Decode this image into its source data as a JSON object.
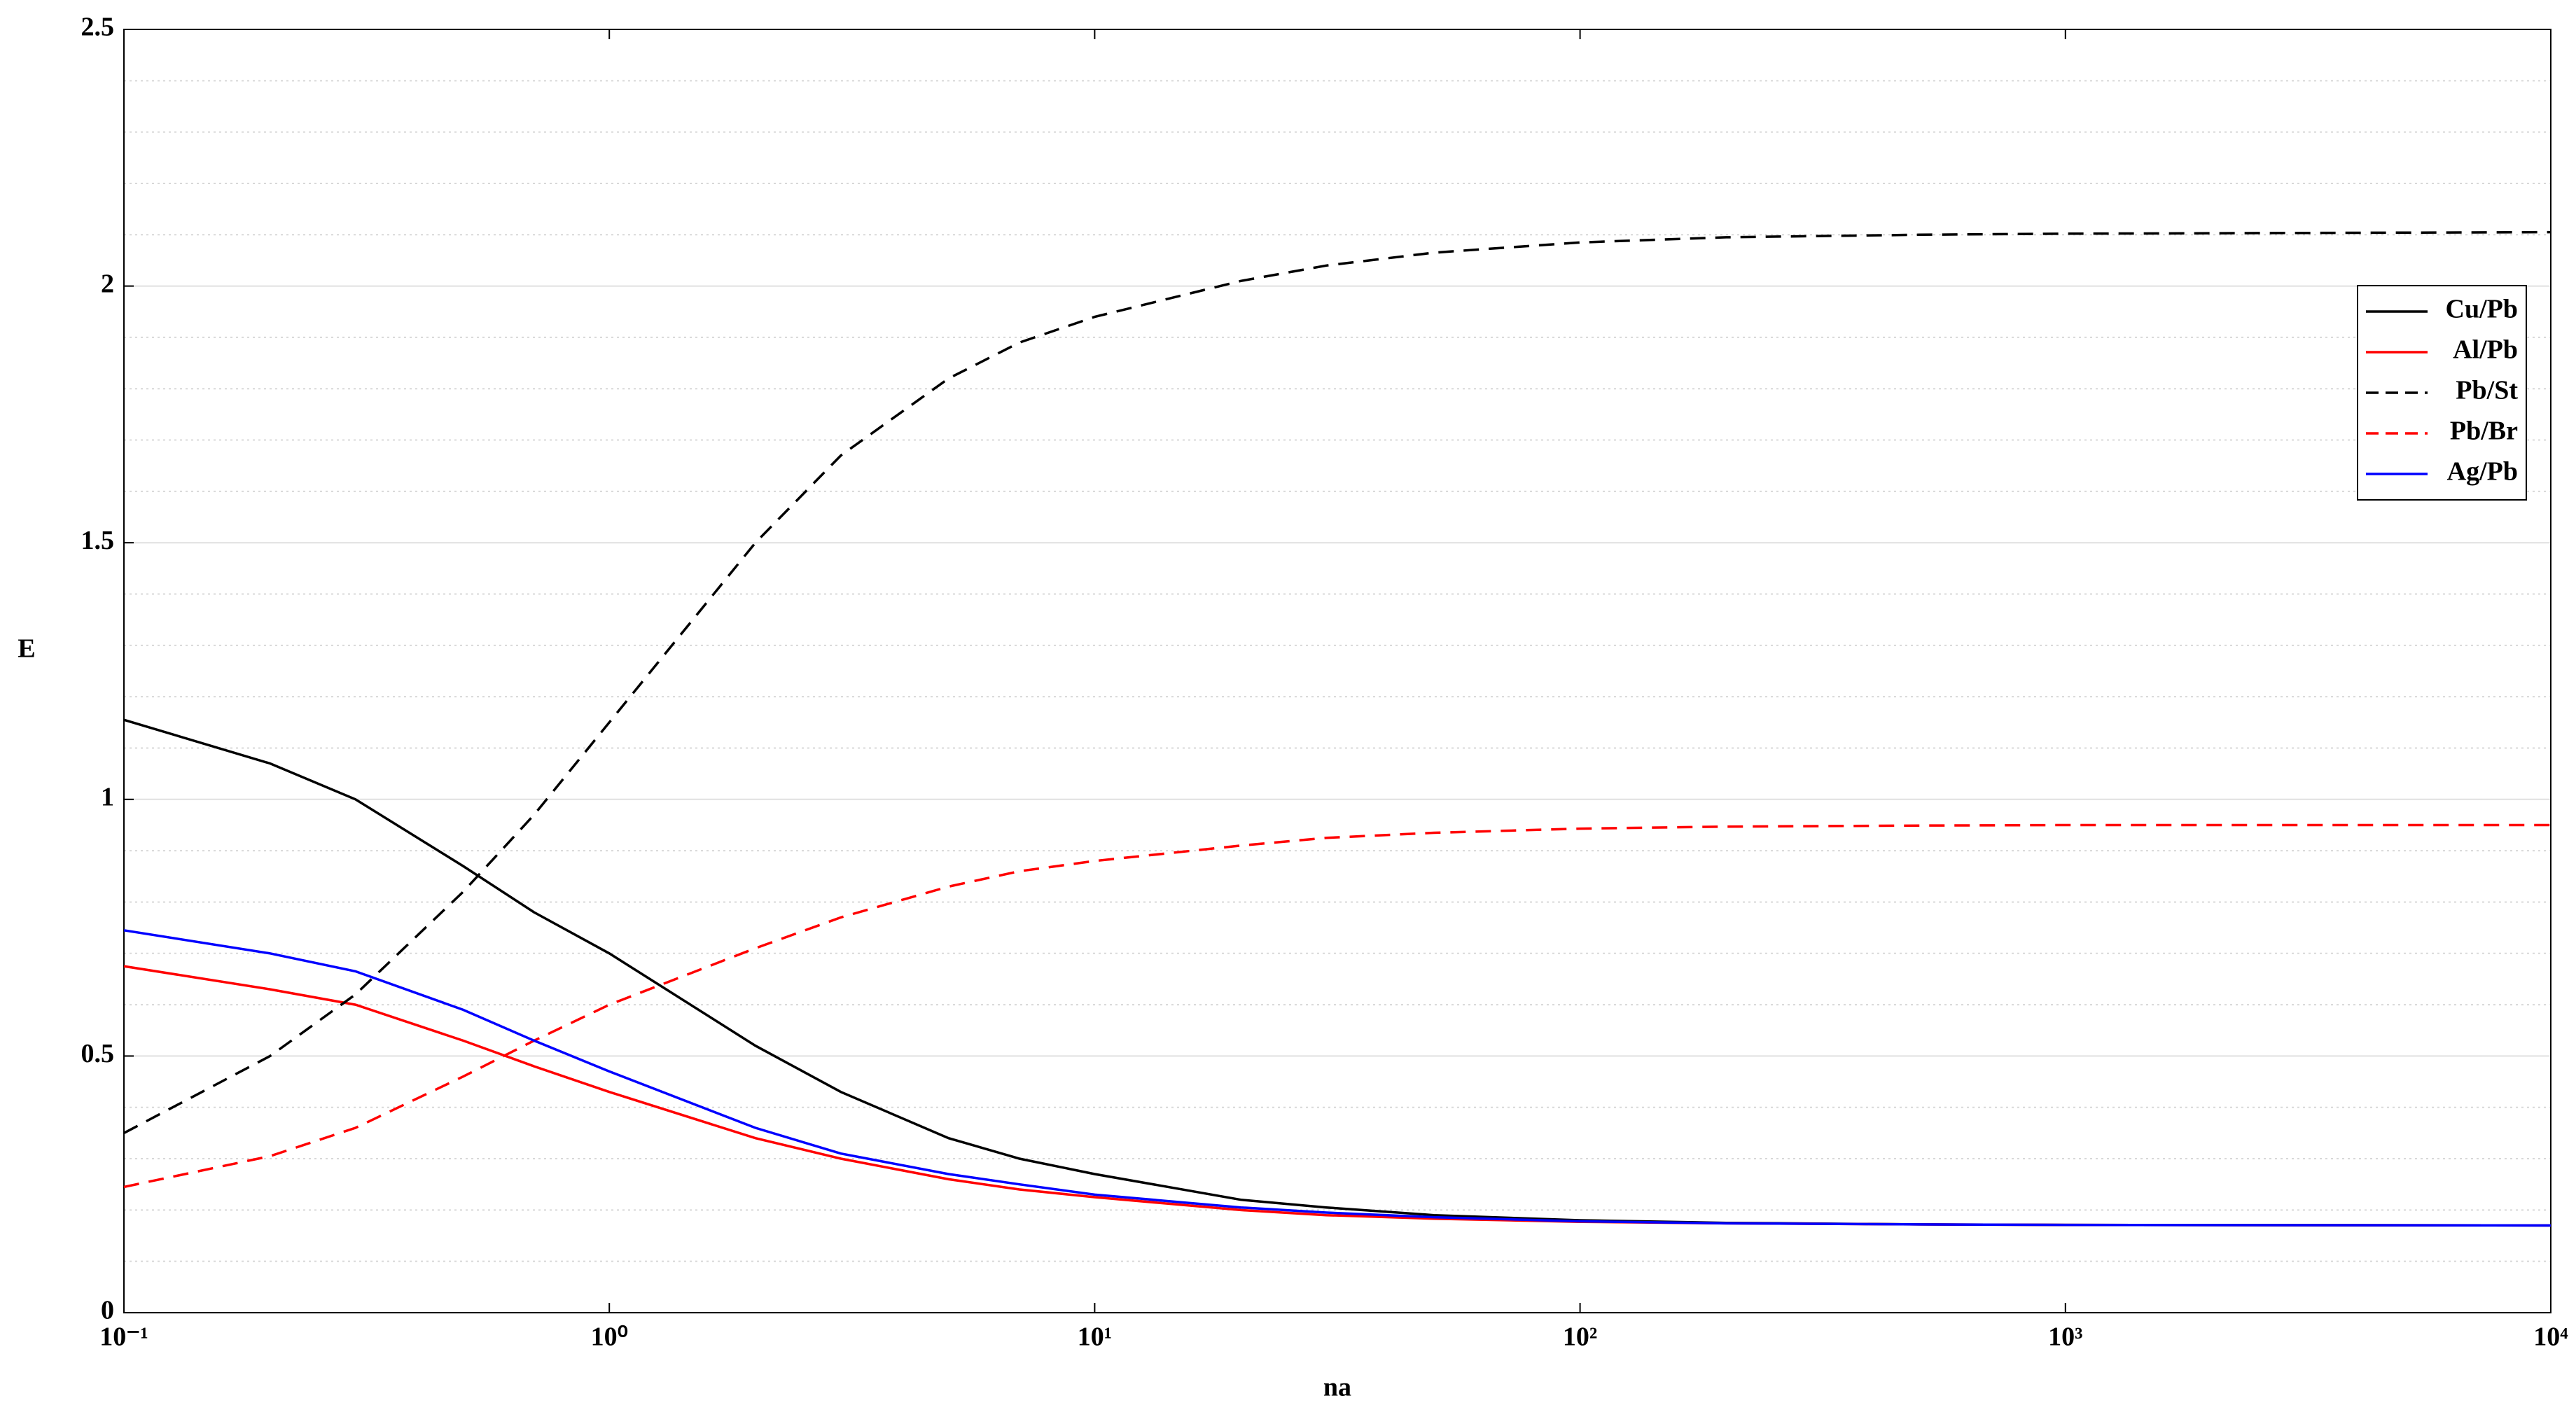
{
  "chart_data": {
    "type": "line",
    "x": [
      0.1,
      0.2,
      0.3,
      0.5,
      0.7,
      1,
      2,
      3,
      5,
      7,
      10,
      20,
      30,
      50,
      100,
      200,
      500,
      1000,
      10000
    ],
    "series": [
      {
        "name": "Cu/Pb",
        "color": "#000000",
        "linestyle": "solid",
        "values": [
          1.155,
          1.07,
          1.0,
          0.87,
          0.78,
          0.7,
          0.52,
          0.43,
          0.34,
          0.3,
          0.27,
          0.22,
          0.205,
          0.19,
          0.18,
          0.175,
          0.172,
          0.171,
          0.17
        ]
      },
      {
        "name": "Al/Pb",
        "color": "#ff0000",
        "linestyle": "solid",
        "values": [
          0.675,
          0.63,
          0.6,
          0.53,
          0.48,
          0.43,
          0.34,
          0.3,
          0.26,
          0.24,
          0.225,
          0.2,
          0.19,
          0.183,
          0.177,
          0.174,
          0.172,
          0.171,
          0.17
        ]
      },
      {
        "name": "Pb/St",
        "color": "#000000",
        "linestyle": "dashed",
        "values": [
          0.35,
          0.5,
          0.62,
          0.82,
          0.97,
          1.15,
          1.5,
          1.67,
          1.82,
          1.89,
          1.94,
          2.01,
          2.04,
          2.065,
          2.085,
          2.095,
          2.1,
          2.102,
          2.105
        ]
      },
      {
        "name": "Pb/Br",
        "color": "#ff0000",
        "linestyle": "dashed",
        "values": [
          0.245,
          0.305,
          0.36,
          0.46,
          0.53,
          0.6,
          0.71,
          0.77,
          0.83,
          0.86,
          0.88,
          0.91,
          0.925,
          0.935,
          0.943,
          0.947,
          0.949,
          0.95,
          0.95
        ]
      },
      {
        "name": "Ag/Pb",
        "color": "#0000ff",
        "linestyle": "solid",
        "values": [
          0.745,
          0.7,
          0.665,
          0.59,
          0.53,
          0.47,
          0.36,
          0.31,
          0.27,
          0.25,
          0.23,
          0.205,
          0.195,
          0.186,
          0.178,
          0.174,
          0.172,
          0.171,
          0.17
        ]
      }
    ],
    "xlabel": "na",
    "ylabel": "E",
    "xscale": "log",
    "xlim": [
      0.1,
      10000
    ],
    "xticks": [
      {
        "value": 0.1,
        "label": "10⁻¹"
      },
      {
        "value": 1,
        "label": "10⁰"
      },
      {
        "value": 10,
        "label": "10¹"
      },
      {
        "value": 100,
        "label": "10²"
      },
      {
        "value": 1000,
        "label": "10³"
      },
      {
        "value": 10000,
        "label": "10⁴"
      }
    ],
    "ylim": [
      0,
      2.5
    ],
    "yticks": [
      0,
      0.5,
      1,
      1.5,
      2,
      2.5
    ],
    "yminorticks": [
      0.1,
      0.2,
      0.3,
      0.4,
      0.6,
      0.7,
      0.8,
      0.9,
      1.1,
      1.2,
      1.3,
      1.4,
      1.6,
      1.7,
      1.8,
      1.9,
      2.1,
      2.2,
      2.3,
      2.4
    ],
    "grid": true,
    "legend": "upper right"
  }
}
